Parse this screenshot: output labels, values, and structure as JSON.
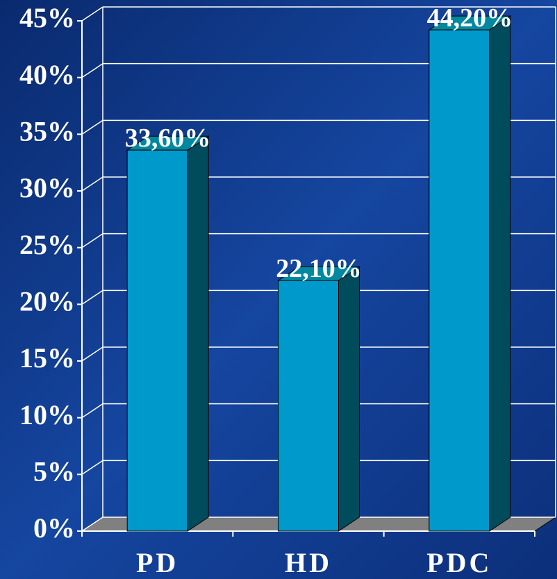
{
  "chart_data": {
    "type": "bar3d",
    "categories": [
      "PD",
      "HD",
      "PDC"
    ],
    "values": [
      33.6,
      22.1,
      44.2
    ],
    "value_labels": [
      "33,60%",
      "22,10%",
      "44,20%"
    ],
    "color": "#0099cc",
    "ylim": [
      0,
      45
    ],
    "yticks": [
      {
        "value": 0,
        "label": "0%"
      },
      {
        "value": 5,
        "label": "5%"
      },
      {
        "value": 10,
        "label": "10%"
      },
      {
        "value": 15,
        "label": "15%"
      },
      {
        "value": 20,
        "label": "20%"
      },
      {
        "value": 25,
        "label": "25%"
      },
      {
        "value": 30,
        "label": "30%"
      },
      {
        "value": 35,
        "label": "35%"
      },
      {
        "value": 40,
        "label": "40%"
      },
      {
        "value": 45,
        "label": "45%"
      }
    ],
    "grid": true
  }
}
